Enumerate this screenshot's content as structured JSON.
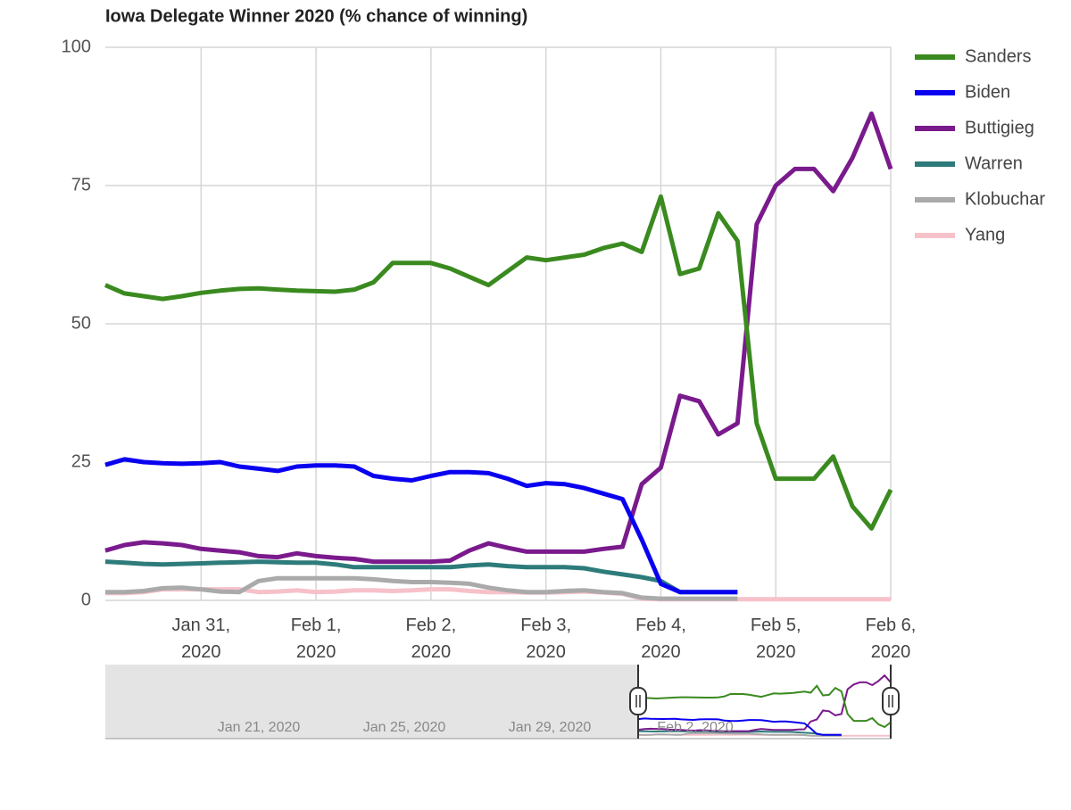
{
  "chart_data": {
    "type": "line",
    "title": "Iowa Delegate Winner 2020 (% chance of winning)",
    "categories": [
      null,
      null,
      null,
      null,
      null,
      "Jan 31, 2020",
      null,
      null,
      null,
      null,
      null,
      "Feb 1, 2020",
      null,
      null,
      null,
      null,
      null,
      "Feb 2, 2020",
      null,
      null,
      null,
      null,
      null,
      "Feb 3, 2020",
      null,
      null,
      null,
      null,
      null,
      "Feb 4, 2020",
      null,
      null,
      null,
      null,
      null,
      "Feb 5, 2020",
      null,
      null,
      null,
      null,
      null,
      "Feb 6, 2020"
    ],
    "series": [
      {
        "name": "Sanders",
        "color": "#3a8a1f",
        "values": [
          57,
          55.5,
          55,
          54.5,
          55,
          55.6,
          56,
          56.3,
          56.4,
          56.2,
          56,
          55.9,
          55.8,
          56.2,
          57.5,
          61,
          61,
          61,
          60,
          58.5,
          57,
          59.5,
          62,
          61.5,
          62,
          62.5,
          63.7,
          64.5,
          63,
          73,
          59,
          60,
          70,
          65,
          32,
          22,
          22,
          22,
          26,
          17,
          13,
          20
        ]
      },
      {
        "name": "Biden",
        "color": "#0a00f0",
        "values": [
          24.5,
          25.5,
          25,
          24.8,
          24.7,
          24.8,
          25,
          24.2,
          23.8,
          23.4,
          24.2,
          24.4,
          24.4,
          24.2,
          22.5,
          22,
          21.7,
          22.5,
          23.2,
          23.2,
          23,
          22,
          20.7,
          21.2,
          21,
          20.3,
          19.3,
          18.3,
          11,
          3,
          1.5,
          1.5,
          1.5,
          1.5,
          null,
          null,
          null,
          null,
          null,
          null,
          null,
          null
        ]
      },
      {
        "name": "Buttigieg",
        "color": "#7a1a8c",
        "values": [
          9,
          10,
          10.5,
          10.3,
          10,
          9.3,
          9,
          8.7,
          8,
          7.8,
          8.5,
          8,
          7.7,
          7.5,
          7,
          7,
          7,
          7,
          7.2,
          9,
          10.3,
          9.5,
          8.8,
          8.8,
          8.8,
          8.8,
          9.3,
          9.7,
          21,
          24,
          37,
          36,
          30,
          32,
          68,
          75,
          78,
          78,
          74,
          80,
          88,
          78
        ]
      },
      {
        "name": "Warren",
        "color": "#2e7b7b",
        "values": [
          7,
          6.8,
          6.6,
          6.5,
          6.6,
          6.7,
          6.8,
          6.9,
          7,
          6.9,
          6.8,
          6.8,
          6.5,
          6,
          6,
          6,
          6,
          6,
          6,
          6.3,
          6.5,
          6.2,
          6,
          6,
          6,
          5.8,
          5.2,
          4.7,
          4.2,
          3.5,
          1.5,
          1.5,
          1.5,
          1.5,
          null,
          null,
          null,
          null,
          null,
          null,
          null,
          null
        ]
      },
      {
        "name": "Klobuchar",
        "color": "#aaaaaa",
        "values": [
          1.5,
          1.5,
          1.7,
          2.2,
          2.3,
          2,
          1.6,
          1.5,
          3.5,
          4,
          4,
          4,
          4,
          4,
          3.8,
          3.5,
          3.3,
          3.3,
          3.2,
          3,
          2.3,
          1.8,
          1.5,
          1.5,
          1.7,
          1.8,
          1.5,
          1.3,
          0.5,
          0.3,
          0.3,
          0.3,
          0.3,
          0.3,
          null,
          null,
          null,
          null,
          null,
          null,
          null,
          null
        ]
      },
      {
        "name": "Yang",
        "color": "#f7c1ca",
        "values": [
          1.3,
          1.3,
          1.5,
          2,
          2,
          2,
          2,
          2,
          1.5,
          1.6,
          1.8,
          1.5,
          1.6,
          1.8,
          1.8,
          1.7,
          1.8,
          2,
          2,
          1.7,
          1.5,
          1.5,
          1.4,
          1.4,
          1.5,
          1.6,
          1.4,
          1.2,
          0.3,
          0.2,
          0.2,
          0.2,
          0.2,
          0.2,
          0.2,
          0.2,
          0.2,
          0.2,
          0.2,
          0.2,
          0.2,
          0.2
        ]
      }
    ],
    "ylim": [
      0,
      100
    ],
    "yticks": [
      0,
      25,
      50,
      75,
      100
    ],
    "grid": true,
    "legend": "right",
    "navigator": {
      "labels": [
        "Jan 21, 2020",
        "Jan 25, 2020",
        "Jan 29, 2020",
        "Feb 2, 2020"
      ]
    }
  }
}
